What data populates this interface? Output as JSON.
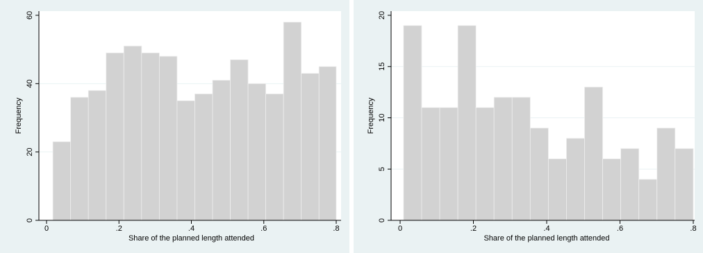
{
  "chart_data": [
    {
      "type": "bar",
      "xlabel": "Share of the planned length attended",
      "ylabel": "Frequency",
      "xlim": [
        0,
        0.8
      ],
      "ylim": [
        0,
        60
      ],
      "xticks": [
        "0",
        ".2",
        ".4",
        ".6",
        ".8"
      ],
      "yticks": [
        "0",
        "20",
        "40",
        "60"
      ],
      "grid": true,
      "bins": [
        {
          "x0": 0.0175,
          "x1": 0.0665,
          "value": 23
        },
        {
          "x0": 0.0665,
          "x1": 0.1155,
          "value": 36
        },
        {
          "x0": 0.1155,
          "x1": 0.1645,
          "value": 38
        },
        {
          "x0": 0.1645,
          "x1": 0.2135,
          "value": 49
        },
        {
          "x0": 0.2135,
          "x1": 0.2625,
          "value": 51
        },
        {
          "x0": 0.2625,
          "x1": 0.3115,
          "value": 49
        },
        {
          "x0": 0.3115,
          "x1": 0.3605,
          "value": 48
        },
        {
          "x0": 0.3605,
          "x1": 0.4095,
          "value": 35
        },
        {
          "x0": 0.4095,
          "x1": 0.4585,
          "value": 37
        },
        {
          "x0": 0.4585,
          "x1": 0.5075,
          "value": 41
        },
        {
          "x0": 0.5075,
          "x1": 0.5565,
          "value": 47
        },
        {
          "x0": 0.5565,
          "x1": 0.6055,
          "value": 40
        },
        {
          "x0": 0.6055,
          "x1": 0.6545,
          "value": 37
        },
        {
          "x0": 0.6545,
          "x1": 0.7035,
          "value": 58
        },
        {
          "x0": 0.7035,
          "x1": 0.7525,
          "value": 43
        },
        {
          "x0": 0.7525,
          "x1": 0.8,
          "value": 45
        }
      ]
    },
    {
      "type": "bar",
      "xlabel": "Share of the planned length attended",
      "ylabel": "Frequency",
      "xlim": [
        0,
        0.8
      ],
      "ylim": [
        0,
        20
      ],
      "xticks": [
        "0",
        ".2",
        ".4",
        ".6",
        ".8"
      ],
      "yticks": [
        "0",
        "5",
        "10",
        "15",
        "20"
      ],
      "grid": true,
      "bins": [
        {
          "x0": 0.0093,
          "x1": 0.0587,
          "value": 19
        },
        {
          "x0": 0.0587,
          "x1": 0.1081,
          "value": 11
        },
        {
          "x0": 0.1081,
          "x1": 0.1575,
          "value": 11
        },
        {
          "x0": 0.1575,
          "x1": 0.2069,
          "value": 19
        },
        {
          "x0": 0.2069,
          "x1": 0.2563,
          "value": 11
        },
        {
          "x0": 0.2563,
          "x1": 0.3057,
          "value": 12
        },
        {
          "x0": 0.3057,
          "x1": 0.3551,
          "value": 12
        },
        {
          "x0": 0.3551,
          "x1": 0.4045,
          "value": 9
        },
        {
          "x0": 0.4045,
          "x1": 0.4539,
          "value": 6
        },
        {
          "x0": 0.4539,
          "x1": 0.5033,
          "value": 8
        },
        {
          "x0": 0.5033,
          "x1": 0.5527,
          "value": 13
        },
        {
          "x0": 0.5527,
          "x1": 0.6021,
          "value": 6
        },
        {
          "x0": 0.6021,
          "x1": 0.6515,
          "value": 7
        },
        {
          "x0": 0.6515,
          "x1": 0.7009,
          "value": 4
        },
        {
          "x0": 0.7009,
          "x1": 0.7503,
          "value": 9
        },
        {
          "x0": 0.7503,
          "x1": 0.8,
          "value": 7
        }
      ]
    }
  ]
}
